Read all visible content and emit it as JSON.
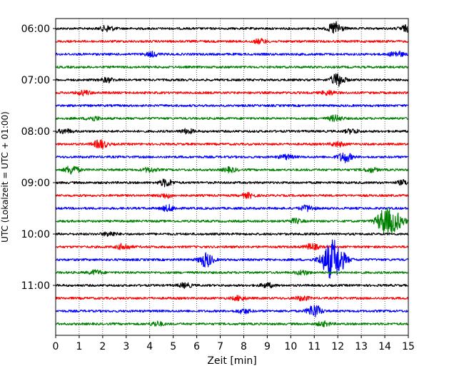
{
  "chart_data": {
    "type": "line",
    "title": "",
    "xlabel": "Zeit  [min]",
    "ylabel": "UTC (Lokalzeit = UTC + 01:00)",
    "xlim": [
      0,
      15
    ],
    "x_ticks": [
      "0",
      "1",
      "2",
      "3",
      "4",
      "5",
      "6",
      "7",
      "8",
      "9",
      "10",
      "11",
      "12",
      "13",
      "14",
      "15"
    ],
    "y_ticks": [
      {
        "label": "06:00",
        "trace": 0
      },
      {
        "label": "07:00",
        "trace": 4
      },
      {
        "label": "08:00",
        "trace": 8
      },
      {
        "label": "09:00",
        "trace": 12
      },
      {
        "label": "10:00",
        "trace": 16
      },
      {
        "label": "11:00",
        "trace": 20
      }
    ],
    "grid_x": true,
    "trace_minutes": 15,
    "color_cycle": [
      "#000000",
      "#ff0000",
      "#0000ff",
      "#008000"
    ],
    "series": [
      {
        "name": "06:00",
        "color": "#000000",
        "events": [
          {
            "t": 2.2,
            "a": 4
          },
          {
            "t": 11.9,
            "a": 9
          },
          {
            "t": 14.9,
            "a": 4
          }
        ]
      },
      {
        "name": "06:15",
        "color": "#ff0000",
        "events": [
          {
            "t": 8.7,
            "a": 3
          }
        ]
      },
      {
        "name": "06:30",
        "color": "#0000ff",
        "events": [
          {
            "t": 4.1,
            "a": 3
          },
          {
            "t": 14.5,
            "a": 4
          }
        ]
      },
      {
        "name": "06:45",
        "color": "#008000",
        "events": []
      },
      {
        "name": "07:00",
        "color": "#000000",
        "events": [
          {
            "t": 2.2,
            "a": 3
          },
          {
            "t": 12.0,
            "a": 9
          }
        ]
      },
      {
        "name": "07:15",
        "color": "#ff0000",
        "events": [
          {
            "t": 1.2,
            "a": 3
          },
          {
            "t": 11.6,
            "a": 3
          }
        ]
      },
      {
        "name": "07:30",
        "color": "#0000ff",
        "events": []
      },
      {
        "name": "07:45",
        "color": "#008000",
        "events": [
          {
            "t": 1.6,
            "a": 3
          },
          {
            "t": 11.9,
            "a": 4
          }
        ]
      },
      {
        "name": "08:00",
        "color": "#000000",
        "events": [
          {
            "t": 0.4,
            "a": 3
          },
          {
            "t": 5.6,
            "a": 3
          },
          {
            "t": 12.6,
            "a": 3
          }
        ]
      },
      {
        "name": "08:15",
        "color": "#ff0000",
        "events": [
          {
            "t": 1.9,
            "a": 6
          },
          {
            "t": 12.0,
            "a": 3
          }
        ]
      },
      {
        "name": "08:30",
        "color": "#0000ff",
        "events": [
          {
            "t": 9.8,
            "a": 3
          },
          {
            "t": 12.3,
            "a": 7
          }
        ]
      },
      {
        "name": "08:45",
        "color": "#008000",
        "events": [
          {
            "t": 0.7,
            "a": 6
          },
          {
            "t": 4.0,
            "a": 3
          },
          {
            "t": 7.4,
            "a": 3
          },
          {
            "t": 13.4,
            "a": 3
          }
        ]
      },
      {
        "name": "09:00",
        "color": "#000000",
        "events": [
          {
            "t": 4.7,
            "a": 5
          },
          {
            "t": 14.8,
            "a": 3
          }
        ]
      },
      {
        "name": "09:15",
        "color": "#ff0000",
        "events": [
          {
            "t": 4.7,
            "a": 3
          },
          {
            "t": 8.2,
            "a": 3
          }
        ]
      },
      {
        "name": "09:30",
        "color": "#0000ff",
        "events": [
          {
            "t": 4.8,
            "a": 4
          },
          {
            "t": 10.7,
            "a": 4
          }
        ]
      },
      {
        "name": "09:45",
        "color": "#008000",
        "events": [
          {
            "t": 10.2,
            "a": 3
          },
          {
            "t": 13.9,
            "a": 9
          },
          {
            "t": 14.3,
            "a": 15
          }
        ]
      },
      {
        "name": "10:00",
        "color": "#000000",
        "events": [
          {
            "t": 2.3,
            "a": 3
          }
        ]
      },
      {
        "name": "10:15",
        "color": "#ff0000",
        "events": [
          {
            "t": 2.9,
            "a": 4
          },
          {
            "t": 10.9,
            "a": 4
          }
        ]
      },
      {
        "name": "10:30",
        "color": "#0000ff",
        "events": [
          {
            "t": 6.4,
            "a": 10
          },
          {
            "t": 11.8,
            "a": 28
          }
        ]
      },
      {
        "name": "10:45",
        "color": "#008000",
        "events": [
          {
            "t": 1.7,
            "a": 3
          },
          {
            "t": 10.5,
            "a": 3
          }
        ]
      },
      {
        "name": "11:00",
        "color": "#000000",
        "events": [
          {
            "t": 5.5,
            "a": 3
          },
          {
            "t": 9.0,
            "a": 3
          }
        ]
      },
      {
        "name": "11:15",
        "color": "#ff0000",
        "events": [
          {
            "t": 7.8,
            "a": 3
          },
          {
            "t": 10.5,
            "a": 3
          }
        ]
      },
      {
        "name": "11:30",
        "color": "#0000ff",
        "events": [
          {
            "t": 8.0,
            "a": 3
          },
          {
            "t": 11.0,
            "a": 9
          }
        ]
      },
      {
        "name": "11:45",
        "color": "#008000",
        "events": [
          {
            "t": 4.3,
            "a": 3
          },
          {
            "t": 11.4,
            "a": 3
          }
        ]
      }
    ]
  }
}
